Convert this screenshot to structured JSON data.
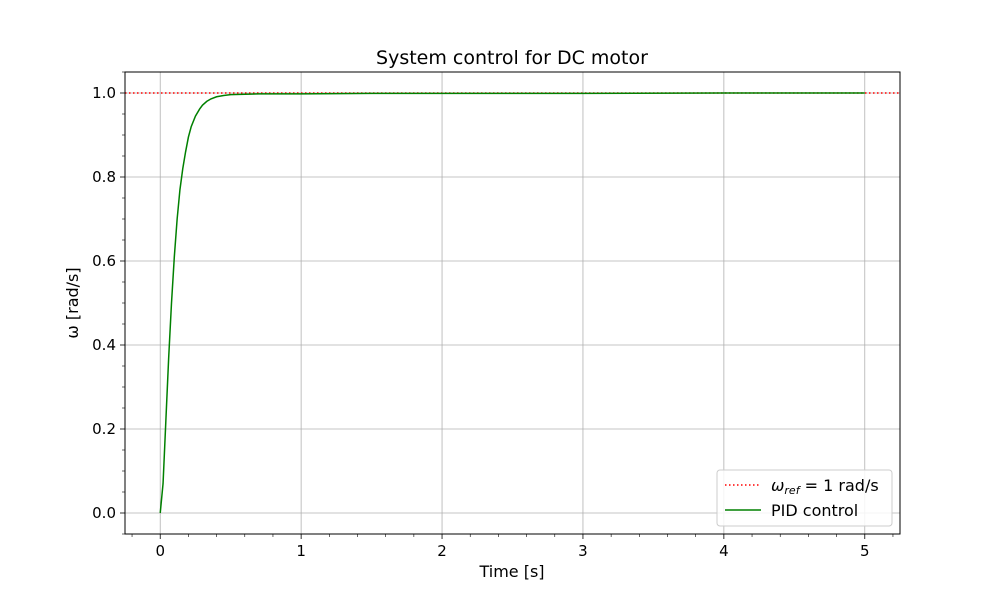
{
  "chart_data": {
    "type": "line",
    "title": "System control for DC motor",
    "xlabel": "Time [s]",
    "ylabel": "ω [rad/s]",
    "xlim": [
      -0.25,
      5.25
    ],
    "ylim": [
      -0.05,
      1.05
    ],
    "xticks": [
      0,
      1,
      2,
      3,
      4,
      5
    ],
    "xtick_labels": [
      "0",
      "1",
      "2",
      "3",
      "4",
      "5"
    ],
    "yticks": [
      0.0,
      0.2,
      0.4,
      0.6,
      0.8,
      1.0
    ],
    "ytick_labels": [
      "0.0",
      "0.2",
      "0.4",
      "0.6",
      "0.8",
      "1.0"
    ],
    "grid": true,
    "minor_ticks": true,
    "legend_placement": "lower right",
    "legend": {
      "reference_symbol": "ω",
      "reference_subscript": "ref",
      "reference_suffix": " = 1 rad/s",
      "pid_label": "PID control"
    },
    "series": [
      {
        "name": "ωref = 1 rad/s",
        "style": "dotted",
        "color": "#ff0000",
        "x": [
          -0.25,
          5.25
        ],
        "y": [
          1.0,
          1.0
        ]
      },
      {
        "name": "PID control",
        "style": "solid",
        "color": "#008000",
        "x": [
          0,
          0.02,
          0.04,
          0.06,
          0.08,
          0.1,
          0.12,
          0.14,
          0.16,
          0.18,
          0.2,
          0.22,
          0.25,
          0.28,
          0.3,
          0.33,
          0.36,
          0.4,
          0.45,
          0.5,
          0.6,
          0.7,
          0.8,
          1.0,
          1.5,
          2.0,
          3.0,
          4.0,
          5.0
        ],
        "y": [
          0.0,
          0.07,
          0.22,
          0.37,
          0.5,
          0.61,
          0.7,
          0.77,
          0.82,
          0.86,
          0.895,
          0.92,
          0.945,
          0.962,
          0.971,
          0.98,
          0.986,
          0.991,
          0.994,
          0.996,
          0.997,
          0.998,
          0.998,
          0.998,
          0.999,
          0.999,
          0.999,
          1.0,
          1.0
        ]
      }
    ]
  }
}
